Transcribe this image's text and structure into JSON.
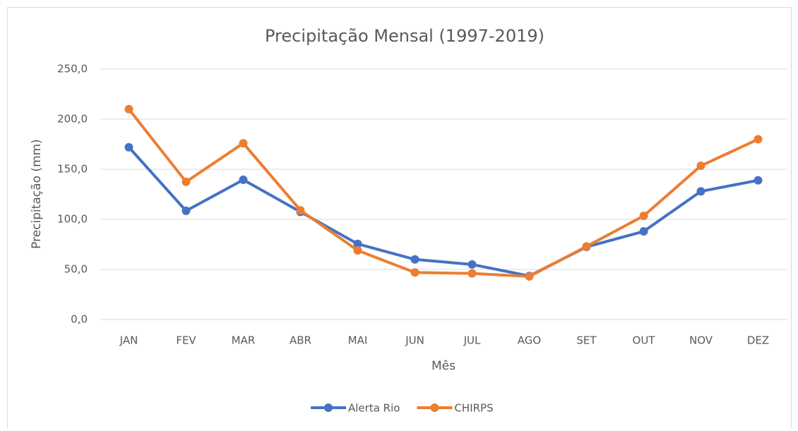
{
  "chart_data": {
    "type": "line",
    "title": "Precipitação Mensal (1997-2019)",
    "x_label": "Mês",
    "y_label": "Precipitação (mm)",
    "categories": [
      "JAN",
      "FEV",
      "MAR",
      "ABR",
      "MAI",
      "JUN",
      "JUL",
      "AGO",
      "SET",
      "OUT",
      "NOV",
      "DEZ"
    ],
    "series": [
      {
        "name": "Alerta Rio",
        "color": "#4472c4",
        "values": [
          172,
          108.5,
          139.5,
          107.5,
          75.5,
          60,
          55,
          43.5,
          72.5,
          88,
          128,
          139
        ]
      },
      {
        "name": "CHIRPS",
        "color": "#ed7d31",
        "values": [
          210,
          137.5,
          176,
          109,
          69,
          47,
          46,
          43,
          73,
          103.5,
          153.5,
          180
        ]
      }
    ],
    "ylim": [
      0,
      250
    ],
    "yticks": [
      {
        "value": 0,
        "label": "0,0"
      },
      {
        "value": 50,
        "label": "50,0"
      },
      {
        "value": 100,
        "label": "100,0"
      },
      {
        "value": 150,
        "label": "150,0"
      },
      {
        "value": 200,
        "label": "200,0"
      },
      {
        "value": 250,
        "label": "250,0"
      }
    ],
    "grid": true,
    "legend": "bottom"
  }
}
